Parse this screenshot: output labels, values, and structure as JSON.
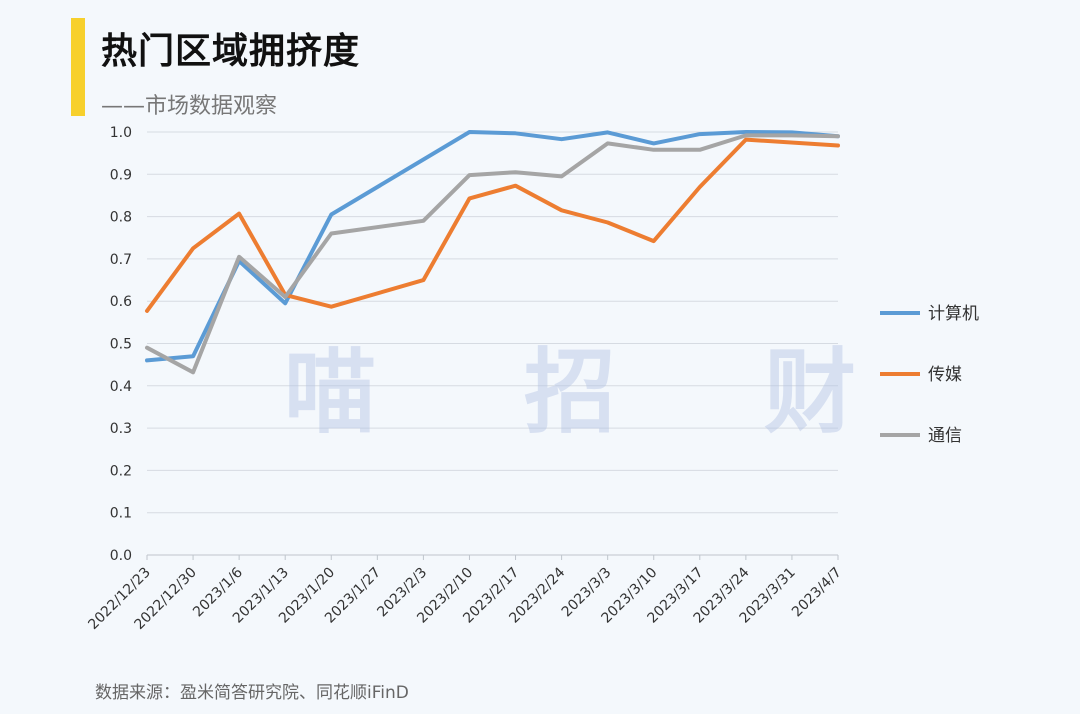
{
  "header": {
    "title": "热门区域拥挤度",
    "subtitle": "——市场数据观察",
    "accent_color": "#f7d02c"
  },
  "watermark": "喵 招 财",
  "source": "数据来源：盈米简答研究院、同花顺iFinD",
  "chart_data": {
    "type": "line",
    "title": "热门区域拥挤度",
    "xlabel": "",
    "ylabel": "",
    "ylim": [
      0,
      1.0
    ],
    "yticks": [
      "0.0",
      "0.1",
      "0.2",
      "0.3",
      "0.4",
      "0.5",
      "0.6",
      "0.7",
      "0.8",
      "0.9",
      "1.0"
    ],
    "grid": true,
    "legend_position": "right",
    "categories": [
      "2022/12/23",
      "2022/12/30",
      "2023/1/6",
      "2023/1/13",
      "2023/1/20",
      "2023/1/27",
      "2023/2/3",
      "2023/2/10",
      "2023/2/17",
      "2023/2/24",
      "2023/3/3",
      "2023/3/10",
      "2023/3/17",
      "2023/3/24",
      "2023/3/31",
      "2023/4/7"
    ],
    "series": [
      {
        "name": "计算机",
        "color": "#5b9bd5",
        "values": [
          0.46,
          0.47,
          0.695,
          0.595,
          0.805,
          null,
          null,
          1.0,
          0.997,
          0.983,
          0.999,
          0.973,
          0.995,
          1.0,
          0.999,
          0.99
        ]
      },
      {
        "name": "传媒",
        "color": "#ed7d31",
        "values": [
          0.577,
          0.725,
          0.807,
          0.615,
          0.587,
          null,
          0.65,
          0.843,
          0.873,
          0.815,
          0.786,
          0.742,
          0.87,
          0.982,
          null,
          0.968
        ]
      },
      {
        "name": "通信",
        "color": "#a5a5a5",
        "values": [
          0.49,
          0.432,
          0.705,
          0.61,
          0.76,
          null,
          0.79,
          0.898,
          0.905,
          0.895,
          0.973,
          0.958,
          0.958,
          0.992,
          0.992,
          0.99
        ]
      }
    ]
  }
}
